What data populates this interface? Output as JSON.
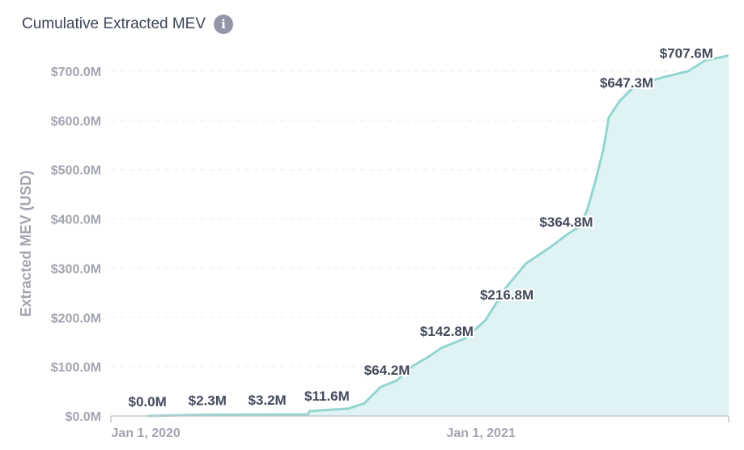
{
  "title": "Cumulative Extracted MEV",
  "info_icon": "info-icon",
  "chart_data": {
    "type": "area",
    "title": "Cumulative Extracted MEV",
    "xlabel": "",
    "ylabel": "Extracted MEV (USD)",
    "x_units": "months since Jan 1, 2020",
    "xlim": [
      -1.25,
      20.87
    ],
    "ylim": [
      0,
      700
    ],
    "yticks": [
      {
        "value": 0,
        "label": "$0.0M"
      },
      {
        "value": 100,
        "label": "$100.0M"
      },
      {
        "value": 200,
        "label": "$200.0M"
      },
      {
        "value": 300,
        "label": "$300.0M"
      },
      {
        "value": 400,
        "label": "$400.0M"
      },
      {
        "value": 500,
        "label": "$500.0M"
      },
      {
        "value": 600,
        "label": "$600.0M"
      },
      {
        "value": 700,
        "label": "$700.0M"
      }
    ],
    "xticks": [
      {
        "value": 0,
        "label": "Jan 1, 2020"
      },
      {
        "value": 12,
        "label": "Jan 1, 2021"
      }
    ],
    "grid": "horizontal dashed",
    "colors": {
      "line": "#93d5d0",
      "fill": "#dff3f4"
    },
    "series": [
      {
        "name": "Cumulative Extracted MEV",
        "x": [
          0.06,
          1.74,
          5.8,
          5.86,
          7.25,
          7.83,
          8.41,
          8.99,
          9.57,
          10.14,
          10.58,
          11.45,
          12.17,
          12.9,
          13.62,
          14.49,
          15.07,
          15.51,
          15.8,
          16.09,
          16.38,
          16.58,
          16.96,
          17.54,
          18.55,
          19.42,
          20.0,
          20.87
        ],
        "y": [
          0,
          2.3,
          3.2,
          10,
          15,
          26,
          59,
          72,
          102,
          121,
          138,
          158,
          195,
          261,
          310,
          343,
          368,
          384,
          417,
          475,
          540,
          606,
          639,
          672,
          688,
          700,
          721,
          732
        ]
      }
    ],
    "data_labels": [
      {
        "x": 0.0,
        "value": 0.0,
        "label": "$0.0M"
      },
      {
        "x": 2.15,
        "value": 2.3,
        "label": "$2.3M"
      },
      {
        "x": 4.29,
        "value": 3.2,
        "label": "$3.2M"
      },
      {
        "x": 6.43,
        "value": 11.6,
        "label": "$11.6M"
      },
      {
        "x": 8.58,
        "value": 64.2,
        "label": "$64.2M"
      },
      {
        "x": 10.72,
        "value": 142.8,
        "label": "$142.8M"
      },
      {
        "x": 12.87,
        "value": 216.8,
        "label": "$216.8M"
      },
      {
        "x": 15.0,
        "value": 364.8,
        "label": "$364.8M"
      },
      {
        "x": 17.16,
        "value": 647.3,
        "label": "$647.3M"
      },
      {
        "x": 19.3,
        "value": 707.6,
        "label": "$707.6M"
      }
    ]
  }
}
